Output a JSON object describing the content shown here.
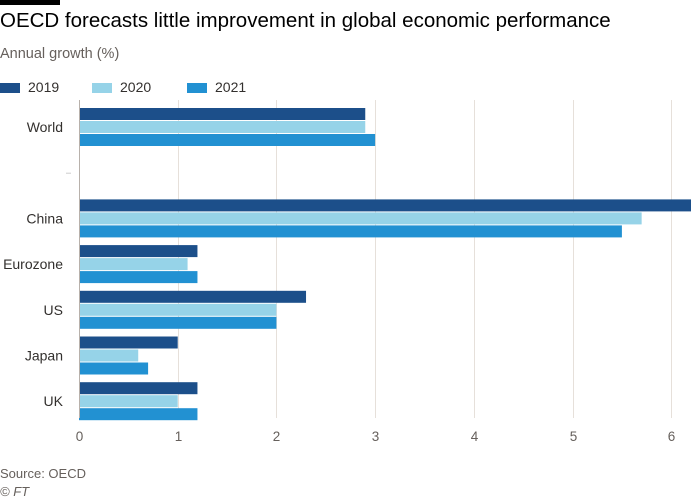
{
  "title": "OECD forecasts little improvement in global economic performance",
  "subtitle": "Annual growth (%)",
  "source": "Source: OECD",
  "credit": "© FT",
  "chart_data": {
    "type": "bar",
    "orientation": "horizontal",
    "categories": [
      "World",
      "",
      "China",
      "Eurozone",
      "US",
      "Japan",
      "UK"
    ],
    "series": [
      {
        "name": "2019",
        "color": "#1c4f8a",
        "values": [
          2.9,
          null,
          6.2,
          1.2,
          2.3,
          1.0,
          1.2
        ]
      },
      {
        "name": "2020",
        "color": "#96d3e8",
        "values": [
          2.9,
          null,
          5.7,
          1.1,
          2.0,
          0.6,
          1.0
        ]
      },
      {
        "name": "2021",
        "color": "#2291d2",
        "values": [
          3.0,
          null,
          5.5,
          1.2,
          2.0,
          0.7,
          1.2
        ]
      }
    ],
    "xlim": [
      0,
      6.2
    ],
    "xticks": [
      0,
      1,
      2,
      3,
      4,
      5,
      6
    ],
    "xlabel": "",
    "ylabel": "",
    "grid": "vertical",
    "legend_position": "top-left"
  }
}
